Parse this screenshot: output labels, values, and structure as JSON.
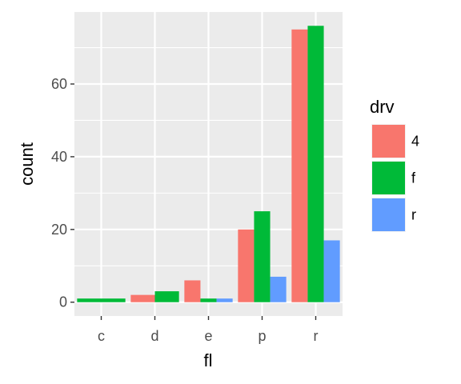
{
  "chart_data": {
    "type": "bar",
    "position": "dodge",
    "xlabel": "fl",
    "ylabel": "count",
    "categories": [
      "c",
      "d",
      "e",
      "p",
      "r"
    ],
    "ylim": [
      -3.8,
      79.8
    ],
    "yticks": [
      0,
      20,
      40,
      60
    ],
    "grid": true,
    "legend": {
      "title": "drv",
      "placement": "right"
    },
    "series": [
      {
        "name": "4",
        "color": "#F8766D",
        "values": [
          null,
          2,
          6,
          20,
          75
        ]
      },
      {
        "name": "f",
        "color": "#00BA38",
        "values": [
          1,
          3,
          1,
          25,
          76
        ]
      },
      {
        "name": "r",
        "color": "#619CFF",
        "values": [
          null,
          null,
          1,
          7,
          17
        ]
      }
    ],
    "panel_background": "#EBEBEB",
    "gridline_color": "#FFFFFF"
  }
}
